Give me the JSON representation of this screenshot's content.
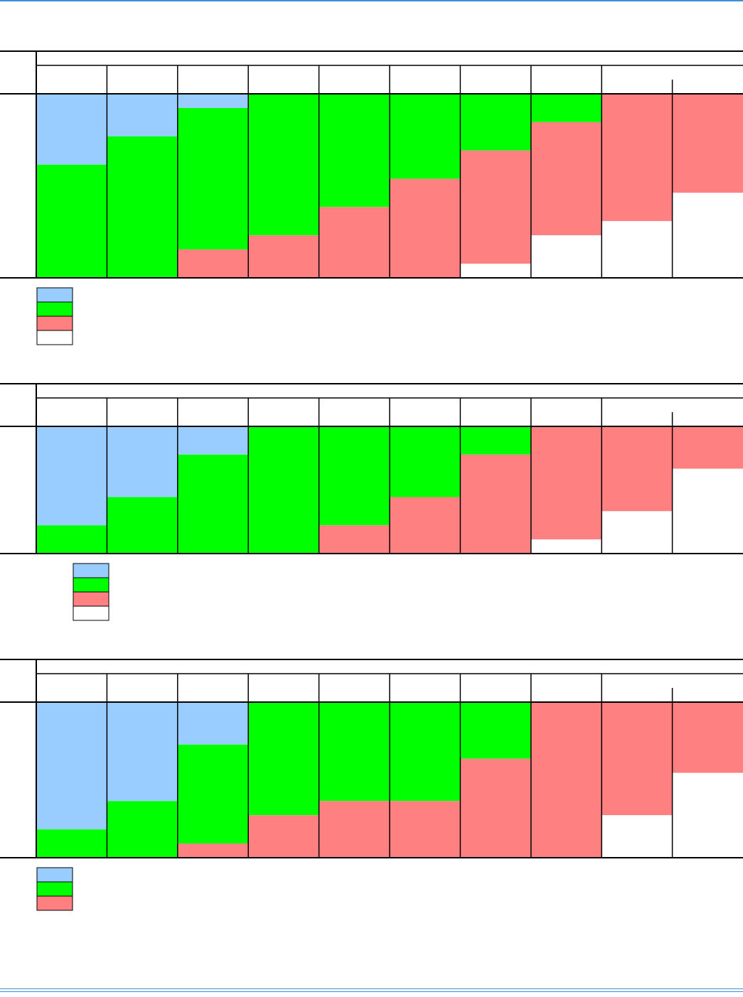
{
  "colors": {
    "accent_rule": "#3d8fd9",
    "grid": "#000000"
  },
  "chart_data": [
    {
      "type": "bar",
      "stacked": true,
      "percent": true,
      "title": "",
      "xlabel": "",
      "ylabel": "",
      "ylim": [
        0,
        100
      ],
      "category_count": 10,
      "categories": [
        "",
        "",
        "",
        "",
        "",
        "",
        "",
        "",
        "",
        ""
      ],
      "series": [
        {
          "color": "#99ccff",
          "values": [
            38.5,
            23.1,
            7.7,
            0,
            0,
            0,
            0,
            0,
            0,
            0
          ]
        },
        {
          "color": "#00ff00",
          "values": [
            61.5,
            76.9,
            76.9,
            76.9,
            61.5,
            46.2,
            30.8,
            15.4,
            0,
            0
          ]
        },
        {
          "color": "#ff8080",
          "values": [
            0,
            0,
            15.4,
            23.1,
            38.5,
            53.8,
            61.5,
            61.5,
            69.2,
            53.8
          ]
        },
        {
          "color": "#ffffff",
          "values": [
            0,
            0,
            0,
            0,
            0,
            0,
            7.7,
            23.1,
            30.8,
            46.2
          ]
        }
      ],
      "legend_position": "bottom-left",
      "grid": true
    },
    {
      "type": "bar",
      "stacked": true,
      "percent": true,
      "title": "",
      "xlabel": "",
      "ylabel": "",
      "ylim": [
        0,
        100
      ],
      "category_count": 10,
      "categories": [
        "",
        "",
        "",
        "",
        "",
        "",
        "",
        "",
        "",
        ""
      ],
      "series": [
        {
          "color": "#99ccff",
          "values": [
            77.8,
            55.6,
            22.2,
            0,
            0,
            0,
            0,
            0,
            0,
            0
          ]
        },
        {
          "color": "#00ff00",
          "values": [
            22.2,
            44.4,
            77.8,
            100,
            77.8,
            55.6,
            22.2,
            0,
            0,
            0
          ]
        },
        {
          "color": "#ff8080",
          "values": [
            0,
            0,
            0,
            0,
            22.2,
            44.4,
            77.8,
            88.9,
            66.7,
            33.3
          ]
        },
        {
          "color": "#ffffff",
          "values": [
            0,
            0,
            0,
            0,
            0,
            0,
            0,
            11.1,
            33.3,
            66.7
          ]
        }
      ],
      "legend_position": "bottom-left",
      "grid": true
    },
    {
      "type": "bar",
      "stacked": true,
      "percent": true,
      "title": "",
      "xlabel": "",
      "ylabel": "",
      "ylim": [
        0,
        100
      ],
      "category_count": 10,
      "categories": [
        "",
        "",
        "",
        "",
        "",
        "",
        "",
        "",
        "",
        ""
      ],
      "series": [
        {
          "color": "#99ccff",
          "values": [
            81.8,
            63.6,
            27.3,
            0,
            0,
            0,
            0,
            0,
            0,
            0
          ]
        },
        {
          "color": "#00ff00",
          "values": [
            18.2,
            36.4,
            63.6,
            72.7,
            63.6,
            63.6,
            36.4,
            0,
            0,
            0
          ]
        },
        {
          "color": "#ff8080",
          "values": [
            0,
            0,
            9.1,
            27.3,
            36.4,
            36.4,
            63.6,
            100,
            72.7,
            45.5
          ]
        },
        {
          "color": "#ffffff",
          "values": [
            0,
            0,
            0,
            0,
            0,
            0,
            0,
            0,
            27.3,
            54.5
          ]
        }
      ],
      "legend_position": "bottom-left",
      "grid": true
    }
  ]
}
